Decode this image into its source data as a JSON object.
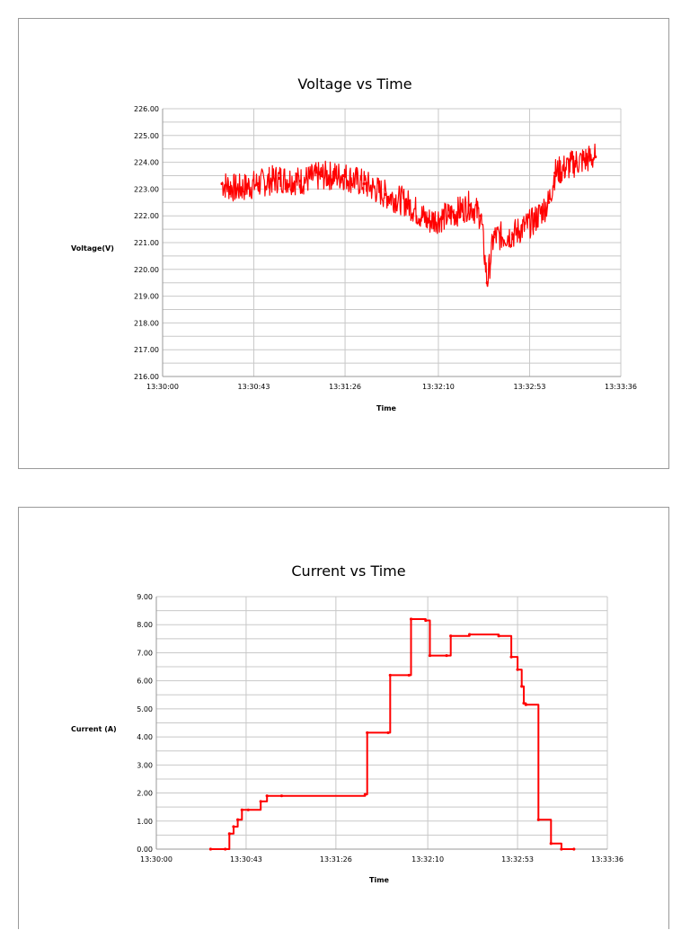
{
  "chart_data": [
    {
      "type": "line",
      "title": "Voltage vs Time",
      "xlabel": "Time",
      "ylabel": "Voltage(V)",
      "ylim": [
        216,
        226
      ],
      "xlim": [
        "13:30:00",
        "13:33:36"
      ],
      "y_ticks": [
        "216.00",
        "217.00",
        "218.00",
        "219.00",
        "220.00",
        "221.00",
        "222.00",
        "223.00",
        "224.00",
        "225.00",
        "226.00"
      ],
      "x_ticks": [
        "13:30:00",
        "13:30:43",
        "13:31:26",
        "13:32:10",
        "13:32:53",
        "13:33:36"
      ],
      "grid": true,
      "series": [
        {
          "color": "#ff0000",
          "x": [
            "13:30:28",
            "13:30:35",
            "13:30:45",
            "13:30:55",
            "13:31:05",
            "13:31:15",
            "13:31:25",
            "13:31:35",
            "13:31:45",
            "13:31:55",
            "13:32:05",
            "13:32:15",
            "13:32:25",
            "13:32:30",
            "13:32:33",
            "13:32:36",
            "13:32:45",
            "13:32:55",
            "13:33:02",
            "13:33:05",
            "13:33:15",
            "13:33:24"
          ],
          "values": [
            223.2,
            223.0,
            223.2,
            223.4,
            223.3,
            223.5,
            223.5,
            223.2,
            222.8,
            222.5,
            221.8,
            222.0,
            222.4,
            222.0,
            219.5,
            221.2,
            221.3,
            221.8,
            222.5,
            223.6,
            224.0,
            224.2
          ]
        }
      ]
    },
    {
      "type": "line",
      "title": "Current vs Time",
      "xlabel": "Time",
      "ylabel": "Current (A)",
      "ylim": [
        0,
        9
      ],
      "xlim": [
        "13:30:00",
        "13:33:36"
      ],
      "y_ticks": [
        "0.00",
        "1.00",
        "2.00",
        "3.00",
        "4.00",
        "5.00",
        "6.00",
        "7.00",
        "8.00",
        "9.00"
      ],
      "x_ticks": [
        "13:30:00",
        "13:30:43",
        "13:31:26",
        "13:32:10",
        "13:32:53",
        "13:33:36"
      ],
      "grid": true,
      "series": [
        {
          "color": "#ff0000",
          "x": [
            "13:30:26",
            "13:30:33",
            "13:30:35",
            "13:30:37",
            "13:30:39",
            "13:30:41",
            "13:30:44",
            "13:30:50",
            "13:30:53",
            "13:31:00",
            "13:31:40",
            "13:31:41",
            "13:31:51",
            "13:31:52",
            "13:32:01",
            "13:32:02",
            "13:32:09",
            "13:32:11",
            "13:32:19",
            "13:32:21",
            "13:32:30",
            "13:32:44",
            "13:32:50",
            "13:32:53",
            "13:32:55",
            "13:32:56",
            "13:32:57",
            "13:33:03",
            "13:33:09",
            "13:33:14",
            "13:33:20"
          ],
          "values": [
            0.0,
            0.0,
            0.55,
            0.8,
            1.05,
            1.4,
            1.4,
            1.7,
            1.9,
            1.9,
            1.95,
            4.15,
            4.15,
            6.2,
            6.2,
            8.2,
            8.15,
            6.9,
            6.9,
            7.6,
            7.65,
            7.6,
            6.85,
            6.4,
            5.8,
            5.2,
            5.15,
            1.05,
            0.2,
            0.0,
            0.0
          ]
        }
      ]
    }
  ]
}
